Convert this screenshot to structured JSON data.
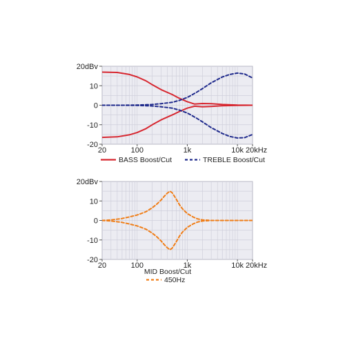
{
  "chart_data": [
    {
      "type": "line",
      "x_scale": "log",
      "xlim": [
        20,
        20000
      ],
      "ylim": [
        -20,
        20
      ],
      "grid": true,
      "legend": "bottom",
      "x_ticks": [
        {
          "value": 20,
          "label": "20"
        },
        {
          "value": 100,
          "label": "100"
        },
        {
          "value": 1000,
          "label": "1k"
        },
        {
          "value": 10000,
          "label": "10k"
        },
        {
          "value": 20000,
          "label": "20kHz"
        }
      ],
      "y_ticks": [
        {
          "value": 20,
          "label": "20dBv"
        },
        {
          "value": 10,
          "label": "10"
        },
        {
          "value": 0,
          "label": "0"
        },
        {
          "value": -10,
          "label": "-10"
        },
        {
          "value": -20,
          "label": "-20"
        }
      ],
      "legend_entries": [
        {
          "label": "BASS Boost/Cut",
          "color": "#d7262f",
          "style": "solid"
        },
        {
          "label": "TREBLE Boost/Cut",
          "color": "#1f2a8c",
          "style": "dashed"
        }
      ],
      "series": [
        {
          "group": "BASS Boost/Cut",
          "color": "#d7262f",
          "style": "solid",
          "x": [
            20,
            40,
            70,
            100,
            150,
            200,
            300,
            500,
            700,
            1000,
            1400,
            2000,
            3000,
            5000,
            10000,
            20000
          ],
          "y": [
            17,
            16.8,
            15.8,
            14.5,
            12.5,
            10.5,
            8,
            5.5,
            3.5,
            1.8,
            0.6,
            0.9,
            0.8,
            0.4,
            0.1,
            0
          ]
        },
        {
          "group": "BASS Boost/Cut",
          "color": "#d7262f",
          "style": "solid",
          "x": [
            20,
            40,
            70,
            100,
            150,
            200,
            300,
            500,
            700,
            1000,
            1400,
            2000,
            3000,
            5000,
            10000,
            20000
          ],
          "y": [
            -16.5,
            -16.2,
            -15.2,
            -14,
            -12,
            -10,
            -7.5,
            -5,
            -3.2,
            -1.5,
            -0.5,
            -0.8,
            -0.6,
            -0.3,
            -0.1,
            0
          ]
        },
        {
          "group": "TREBLE Boost/Cut",
          "color": "#1f2a8c",
          "style": "dashed",
          "x": [
            20,
            50,
            100,
            200,
            300,
            500,
            700,
            1000,
            1500,
            2000,
            3000,
            5000,
            7000,
            10000,
            14000,
            20000
          ],
          "y": [
            0,
            0,
            0.1,
            0.4,
            0.8,
            1.5,
            2.5,
            4,
            6.5,
            8.5,
            11.5,
            14.5,
            15.8,
            16.5,
            16,
            14
          ]
        },
        {
          "group": "TREBLE Boost/Cut",
          "color": "#1f2a8c",
          "style": "dashed",
          "x": [
            20,
            50,
            100,
            200,
            300,
            500,
            700,
            1000,
            1500,
            2000,
            3000,
            5000,
            7000,
            10000,
            14000,
            20000
          ],
          "y": [
            0,
            0,
            -0.1,
            -0.4,
            -0.8,
            -1.5,
            -2.5,
            -4,
            -6.5,
            -8.5,
            -11.5,
            -14.5,
            -16,
            -16.8,
            -16.6,
            -15
          ]
        }
      ]
    },
    {
      "type": "line",
      "x_scale": "log",
      "xlim": [
        20,
        20000
      ],
      "ylim": [
        -20,
        20
      ],
      "grid": true,
      "legend": "bottom",
      "legend_title": "MID Boost/Cut",
      "x_ticks": [
        {
          "value": 20,
          "label": "20"
        },
        {
          "value": 100,
          "label": "100"
        },
        {
          "value": 1000,
          "label": "1k"
        },
        {
          "value": 10000,
          "label": "10k"
        },
        {
          "value": 20000,
          "label": "20kHz"
        }
      ],
      "y_ticks": [
        {
          "value": 20,
          "label": "20dBv"
        },
        {
          "value": 10,
          "label": "10"
        },
        {
          "value": 0,
          "label": "0"
        },
        {
          "value": -10,
          "label": "-10"
        },
        {
          "value": -20,
          "label": "-20"
        }
      ],
      "legend_entries": [
        {
          "label": "450Hz",
          "color": "#f07d16",
          "style": "dashed"
        }
      ],
      "series": [
        {
          "group": "450Hz",
          "color": "#f07d16",
          "style": "dashed",
          "x": [
            20,
            30,
            50,
            70,
            100,
            150,
            200,
            250,
            300,
            350,
            400,
            450,
            500,
            600,
            700,
            800,
            1000,
            1300,
            1600,
            2000,
            3000,
            5000,
            10000,
            20000
          ],
          "y": [
            0,
            0.3,
            1,
            1.8,
            2.8,
            4.5,
            6.5,
            8.5,
            10.5,
            12.5,
            14,
            15,
            14.2,
            11,
            8,
            6,
            3.5,
            1.8,
            0.8,
            0.3,
            0,
            0,
            0,
            0
          ]
        },
        {
          "group": "450Hz",
          "color": "#f07d16",
          "style": "dashed",
          "x": [
            20,
            30,
            50,
            70,
            100,
            150,
            200,
            250,
            300,
            350,
            400,
            450,
            500,
            600,
            700,
            800,
            1000,
            1300,
            1600,
            2000,
            3000,
            5000,
            10000,
            20000
          ],
          "y": [
            0,
            -0.3,
            -1,
            -1.8,
            -2.8,
            -4.5,
            -6.5,
            -8.5,
            -10.5,
            -12.5,
            -14,
            -15,
            -14.2,
            -11,
            -8,
            -6,
            -3.5,
            -1.8,
            -0.8,
            -0.3,
            0,
            0,
            0,
            0
          ]
        }
      ]
    }
  ]
}
